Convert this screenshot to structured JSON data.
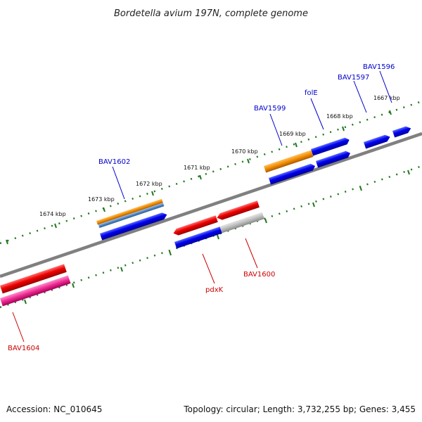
{
  "title": "Bordetella avium 197N, complete genome",
  "footer": {
    "accession": "Accession: NC_010645",
    "topology": "Topology: circular; Length: 3,732,255 bp; Genes: 3,455"
  },
  "colors": {
    "forward_label": "#0000cc",
    "reverse_label": "#cc0000",
    "backbone": "#808080",
    "tick": "#1f7a1f"
  },
  "tick_labels": [
    "1667 kbp",
    "1668 kbp",
    "1669 kbp",
    "1670 kbp",
    "1671 kbp",
    "1672 kbp",
    "1673 kbp",
    "1674 kbp"
  ],
  "gene_labels": {
    "bav1596": "BAV1596",
    "bav1597": "BAV1597",
    "fole": "folE",
    "bav1599": "BAV1599",
    "bav1602": "BAV1602",
    "pdxk": "pdxK",
    "bav1600": "BAV1600",
    "bav1604": "BAV1604"
  }
}
